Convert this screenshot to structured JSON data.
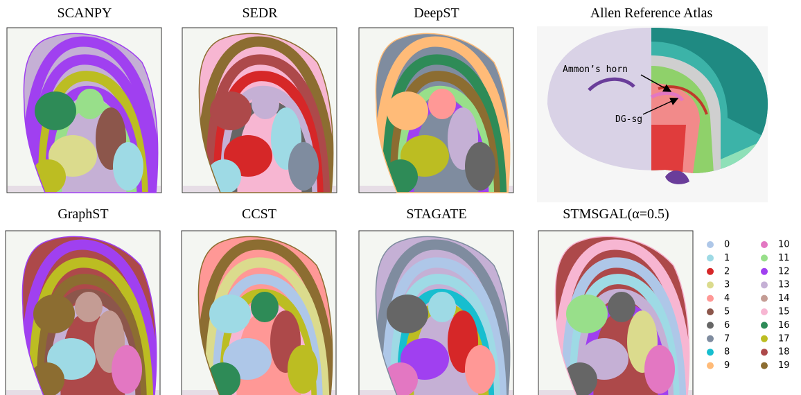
{
  "panels": [
    {
      "title": "SCANPY"
    },
    {
      "title": "SEDR"
    },
    {
      "title": "DeepST"
    },
    {
      "title": "GraphST"
    },
    {
      "title": "CCST"
    },
    {
      "title": "STAGATE"
    },
    {
      "title": "STMSGAL(α=0.5)"
    }
  ],
  "atlas": {
    "title": "Allen Reference Atlas",
    "annotations": [
      "Ammon’s horn",
      "DG-sg"
    ]
  },
  "legend": [
    {
      "label": "0",
      "color": "#aec7e8"
    },
    {
      "label": "1",
      "color": "#9edae5"
    },
    {
      "label": "2",
      "color": "#d62728"
    },
    {
      "label": "3",
      "color": "#dbdb8d"
    },
    {
      "label": "4",
      "color": "#ff9896"
    },
    {
      "label": "5",
      "color": "#8c564b"
    },
    {
      "label": "6",
      "color": "#666666"
    },
    {
      "label": "7",
      "color": "#7f8c9f"
    },
    {
      "label": "8",
      "color": "#17becf"
    },
    {
      "label": "9",
      "color": "#ffbb78"
    },
    {
      "label": "10",
      "color": "#e377c2"
    },
    {
      "label": "11",
      "color": "#98df8a"
    },
    {
      "label": "12",
      "color": "#a040f0"
    },
    {
      "label": "13",
      "color": "#c5b0d5"
    },
    {
      "label": "14",
      "color": "#c49c94"
    },
    {
      "label": "15",
      "color": "#f7b6d2"
    },
    {
      "label": "16",
      "color": "#2e8b57"
    },
    {
      "label": "17",
      "color": "#bcbd22"
    },
    {
      "label": "18",
      "color": "#ad494a"
    },
    {
      "label": "19",
      "color": "#8c6d31"
    }
  ]
}
